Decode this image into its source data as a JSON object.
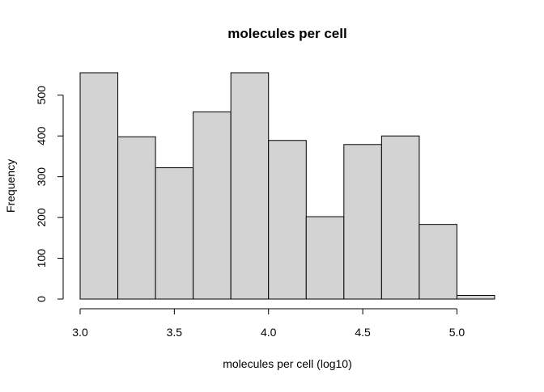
{
  "chart_data": {
    "type": "bar",
    "title": "molecules per cell",
    "xlabel": "molecules per cell (log10)",
    "ylabel": "Frequency",
    "bins": [
      {
        "start": 3.0,
        "end": 3.2,
        "count": 555
      },
      {
        "start": 3.2,
        "end": 3.4,
        "count": 398
      },
      {
        "start": 3.4,
        "end": 3.6,
        "count": 322
      },
      {
        "start": 3.6,
        "end": 3.8,
        "count": 459
      },
      {
        "start": 3.8,
        "end": 4.0,
        "count": 555
      },
      {
        "start": 4.0,
        "end": 4.2,
        "count": 389
      },
      {
        "start": 4.2,
        "end": 4.4,
        "count": 202
      },
      {
        "start": 4.4,
        "end": 4.6,
        "count": 379
      },
      {
        "start": 4.6,
        "end": 4.8,
        "count": 400
      },
      {
        "start": 4.8,
        "end": 5.0,
        "count": 183
      },
      {
        "start": 5.0,
        "end": 5.2,
        "count": 9
      }
    ],
    "xlim": [
      3.0,
      5.2
    ],
    "ylim": [
      0,
      555
    ],
    "xticks": [
      3.0,
      3.5,
      4.0,
      4.5,
      5.0
    ],
    "xtick_labels": [
      "3.0",
      "3.5",
      "4.0",
      "4.5",
      "5.0"
    ],
    "yticks": [
      0,
      100,
      200,
      300,
      400,
      500
    ],
    "ytick_labels": [
      "0",
      "100",
      "200",
      "300",
      "400",
      "500"
    ],
    "bar_fill": "#d3d3d3",
    "bar_stroke": "#000000",
    "grid": false,
    "legend": "none"
  }
}
